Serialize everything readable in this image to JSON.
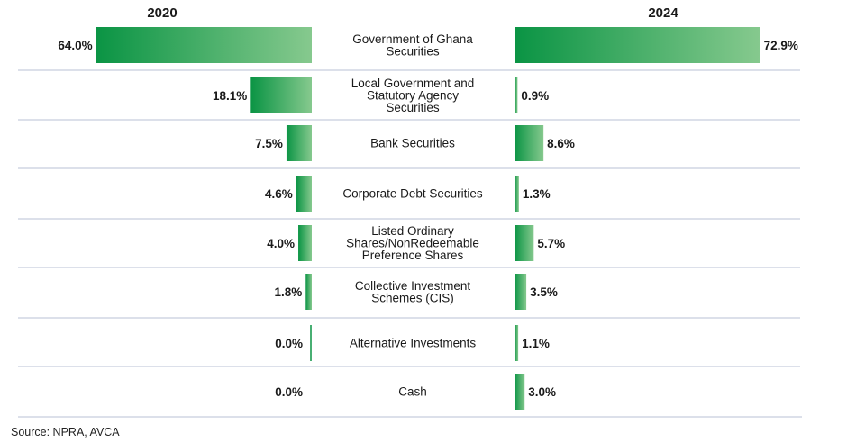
{
  "chart_data": {
    "type": "bar",
    "layout": "butterfly",
    "left_header": "2020",
    "right_header": "2024",
    "categories": [
      [
        "Government of Ghana",
        "Securities"
      ],
      [
        "Local Government and",
        "Statutory Agency",
        "Securities"
      ],
      [
        "Bank Securities"
      ],
      [
        "Corporate Debt Securities"
      ],
      [
        "Listed Ordinary",
        "Shares/NonRedeemable",
        "Preference Shares"
      ],
      [
        "Collective Investment",
        "Schemes (CIS)"
      ],
      [
        "Alternative Investments"
      ],
      [
        "Cash"
      ]
    ],
    "series": [
      {
        "name": "2020",
        "values": [
          64.0,
          18.1,
          7.5,
          4.6,
          4.0,
          1.8,
          0.0,
          0.0
        ],
        "labels": [
          "64.0%",
          "18.1%",
          "7.5%",
          "4.6%",
          "4.0%",
          "1.8%",
          "0.0%",
          "0.0%"
        ]
      },
      {
        "name": "2024",
        "values": [
          72.9,
          0.9,
          8.6,
          1.3,
          5.7,
          3.5,
          1.1,
          3.0
        ],
        "labels": [
          "72.9%",
          "0.9%",
          "8.6%",
          "1.3%",
          "5.7%",
          "3.5%",
          "1.1%",
          "3.0%"
        ]
      }
    ],
    "unit": "%",
    "colors": {
      "bar_dark": "#0a9444",
      "bar_light": "#86c98e",
      "divider": "#b9c2d4"
    },
    "source": "Source: NPRA, AVCA"
  }
}
